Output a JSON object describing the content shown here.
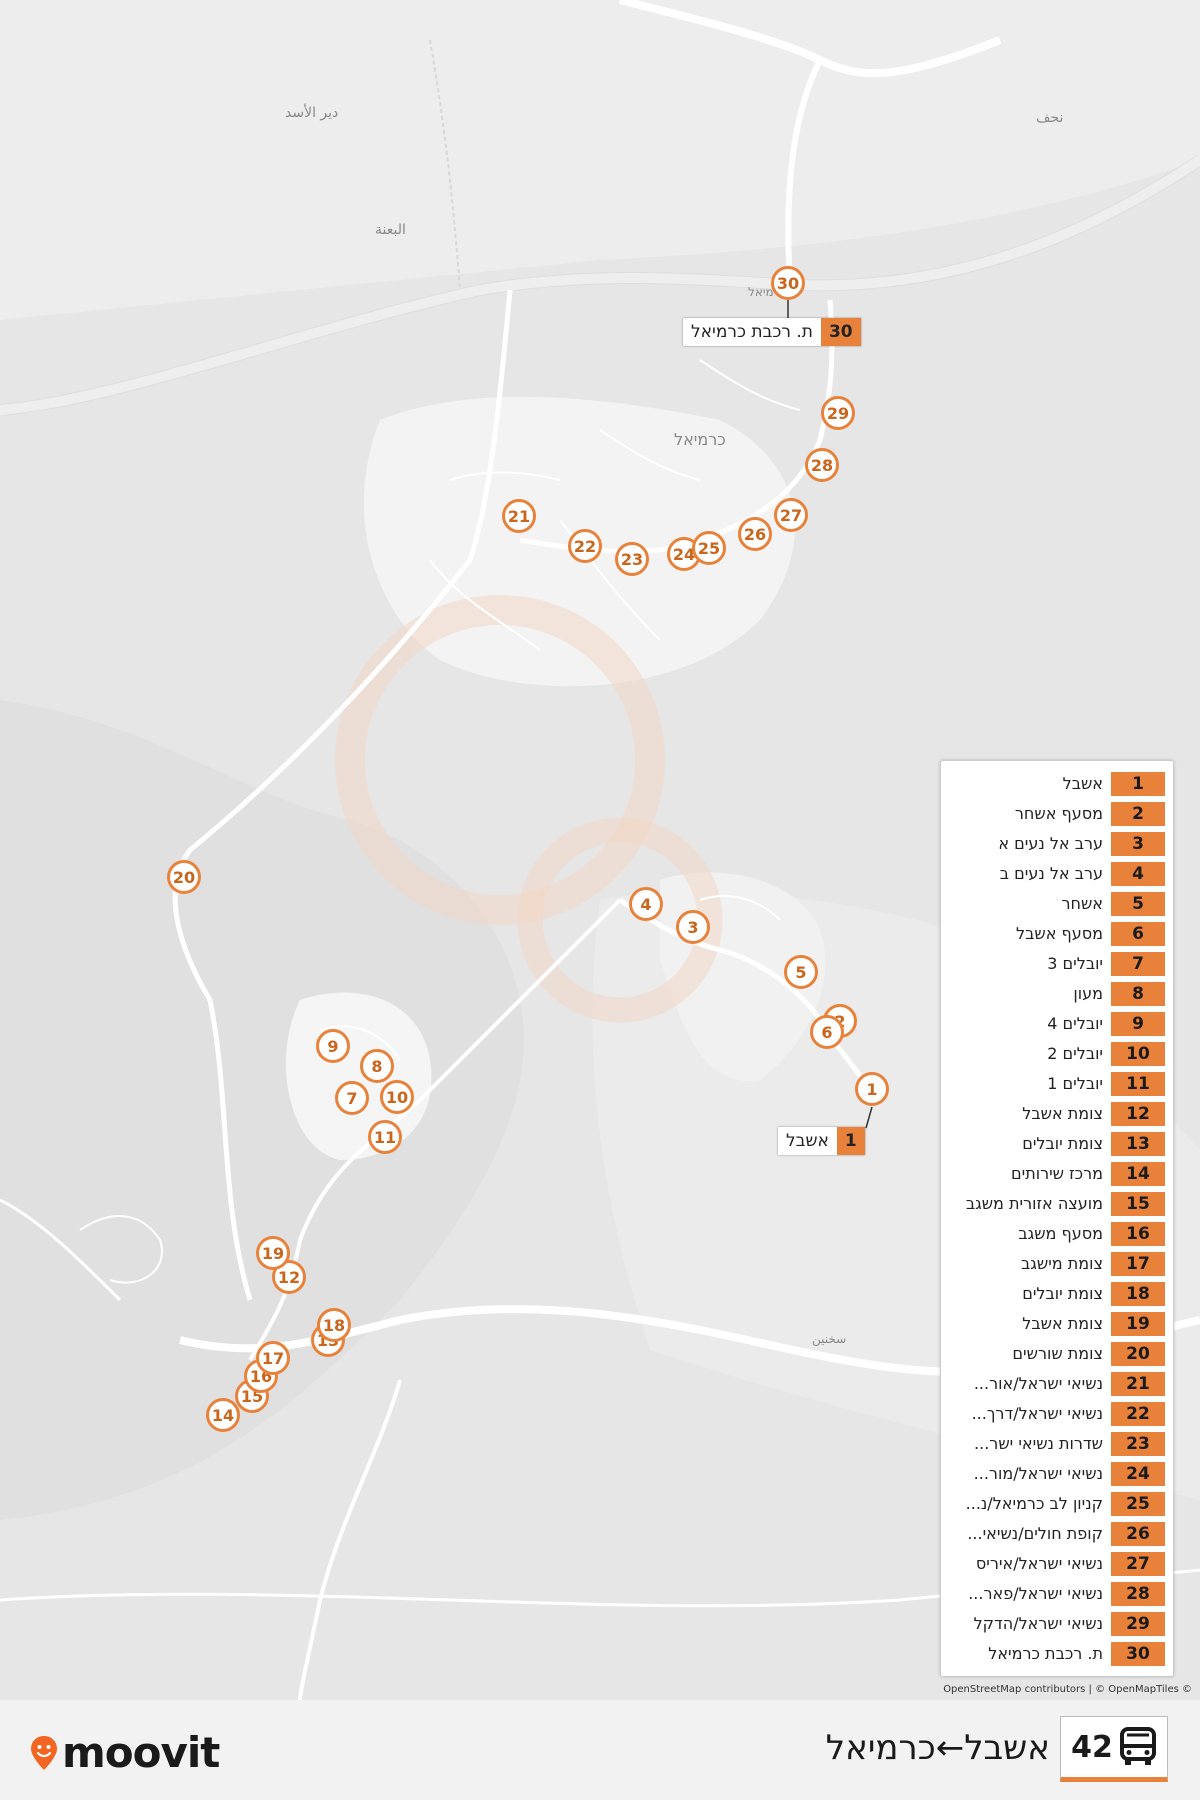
{
  "map": {
    "place_labels": [
      "دير الأسد",
      "البعنة",
      "כרמיאל",
      "כרמיאל",
      "نحف",
      "سخنين"
    ],
    "attribution": "OpenStreetMap contributors | © OpenMapTiles ©"
  },
  "stops": [
    {
      "n": "1",
      "name": "אשבל"
    },
    {
      "n": "2",
      "name": "מסעף אשחר"
    },
    {
      "n": "3",
      "name": "ערב אל נעים א"
    },
    {
      "n": "4",
      "name": "ערב אל נעים ב"
    },
    {
      "n": "5",
      "name": "אשחר"
    },
    {
      "n": "6",
      "name": "מסעף אשבל"
    },
    {
      "n": "7",
      "name": "יובלים 3"
    },
    {
      "n": "8",
      "name": "מעון"
    },
    {
      "n": "9",
      "name": "יובלים 4"
    },
    {
      "n": "10",
      "name": "יובלים 2"
    },
    {
      "n": "11",
      "name": "יובלים 1"
    },
    {
      "n": "12",
      "name": "צומת אשבל"
    },
    {
      "n": "13",
      "name": "צומת יובלים"
    },
    {
      "n": "14",
      "name": "מרכז שירותים"
    },
    {
      "n": "15",
      "name": "מועצה אזורית משגב"
    },
    {
      "n": "16",
      "name": "מסעף משגב"
    },
    {
      "n": "17",
      "name": "צומת מישגב"
    },
    {
      "n": "18",
      "name": "צומת יובלים"
    },
    {
      "n": "19",
      "name": "צומת אשבל"
    },
    {
      "n": "20",
      "name": "צומת שורשים"
    },
    {
      "n": "21",
      "name": "נשיאי ישראל/אור..."
    },
    {
      "n": "22",
      "name": "נשיאי ישראל/דרך..."
    },
    {
      "n": "23",
      "name": "שדרות נשיאי ישר..."
    },
    {
      "n": "24",
      "name": "נשיאי ישראל/מור..."
    },
    {
      "n": "25",
      "name": "קניון לב כרמיאל/נ..."
    },
    {
      "n": "26",
      "name": "קופת חולים/נשיאי..."
    },
    {
      "n": "27",
      "name": "נשיאי ישראל/איריס"
    },
    {
      "n": "28",
      "name": "נשיאי ישראל/פאר..."
    },
    {
      "n": "29",
      "name": "נשיאי ישראל/הדקל"
    },
    {
      "n": "30",
      "name": "ת. רכבת כרמיאל"
    }
  ],
  "callouts": {
    "start": {
      "n": "1",
      "name": "אשבל"
    },
    "end": {
      "n": "30",
      "name": "ת. רכבת כרמיאל"
    }
  },
  "footer": {
    "brand": "moovit",
    "route_number": "42",
    "route_title": "אשבל←כרמיאל",
    "icon": "bus-icon"
  },
  "colors": {
    "accent": "#e8823a"
  }
}
